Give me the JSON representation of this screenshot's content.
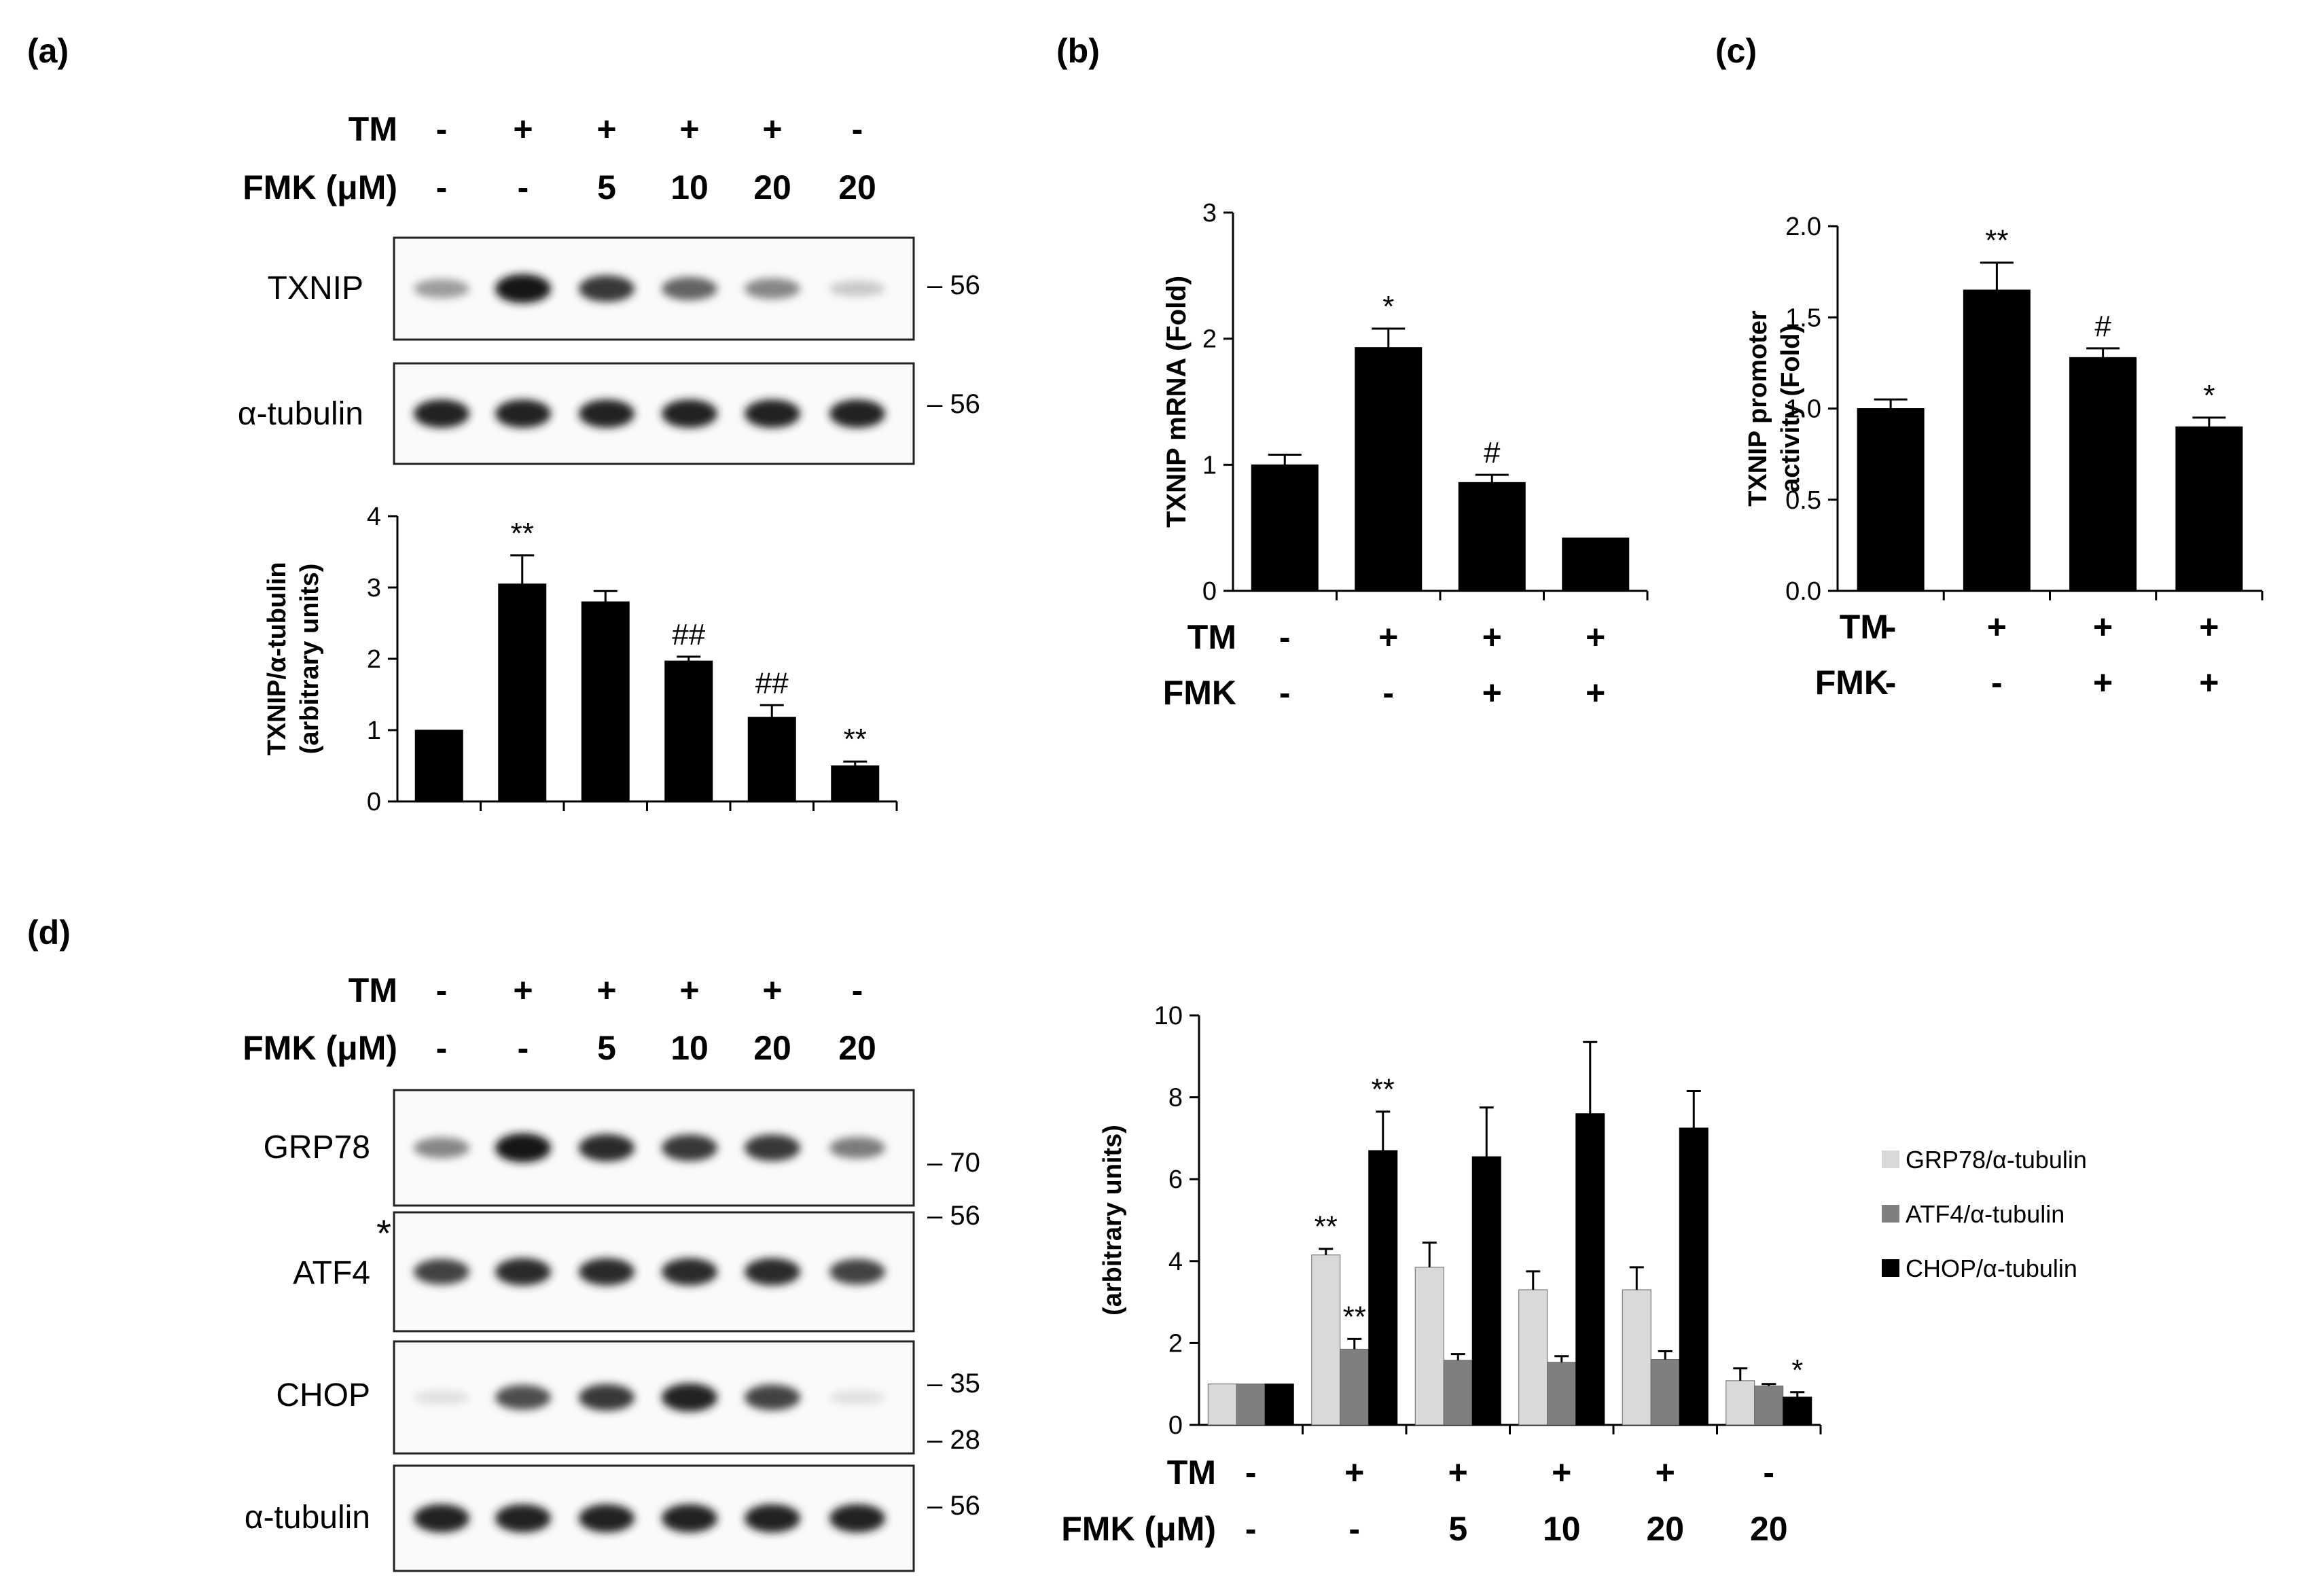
{
  "panels": {
    "a": {
      "label": "(a)",
      "conditions": {
        "rows": [
          {
            "name": "TM",
            "values": [
              "-",
              "+",
              "+",
              "+",
              "+",
              "-"
            ]
          },
          {
            "name": "FMK (μM)",
            "values": [
              "-",
              "-",
              "5",
              "10",
              "20",
              "20"
            ]
          }
        ]
      },
      "blots": [
        {
          "name": "TXNIP",
          "marker": "56",
          "intensity": [
            0.35,
            0.95,
            0.8,
            0.6,
            0.45,
            0.15
          ]
        },
        {
          "name": "α-tubulin",
          "marker": "56",
          "intensity": [
            0.9,
            0.9,
            0.9,
            0.9,
            0.9,
            0.9
          ]
        }
      ]
    },
    "b": {
      "label": "(b)",
      "conditions": {
        "rows": [
          {
            "name": "TM",
            "values": [
              "-",
              "+",
              "+",
              "+"
            ]
          },
          {
            "name": "FMK",
            "values": [
              "-",
              "-",
              "+",
              "+"
            ]
          }
        ]
      }
    },
    "c": {
      "label": "(c)",
      "conditions": {
        "rows": [
          {
            "name": "TM",
            "values": [
              "-",
              "+",
              "+",
              "+"
            ]
          },
          {
            "name": "FMK",
            "values": [
              "-",
              "-",
              "+",
              "+"
            ]
          }
        ]
      }
    },
    "d": {
      "label": "(d)",
      "conditions": {
        "rows": [
          {
            "name": "TM",
            "values": [
              "-",
              "+",
              "+",
              "+",
              "+",
              "-"
            ]
          },
          {
            "name": "FMK (μM)",
            "values": [
              "-",
              "-",
              "5",
              "10",
              "20",
              "20"
            ]
          }
        ]
      },
      "blots": [
        {
          "name": "GRP78",
          "marker": "70",
          "intensity": [
            0.45,
            0.95,
            0.85,
            0.8,
            0.8,
            0.5
          ]
        },
        {
          "name": "ATF4",
          "marker": "56",
          "star": "*",
          "intensity": [
            0.75,
            0.85,
            0.85,
            0.85,
            0.85,
            0.75
          ]
        },
        {
          "name": "CHOP",
          "markers": [
            "35",
            "28"
          ],
          "intensity": [
            0.05,
            0.7,
            0.8,
            0.9,
            0.75,
            0.05
          ]
        },
        {
          "name": "α-tubulin",
          "marker": "56",
          "intensity": [
            0.9,
            0.9,
            0.9,
            0.9,
            0.9,
            0.9
          ]
        }
      ],
      "chart_conditions": {
        "rows": [
          {
            "name": "TM",
            "values": [
              "-",
              "+",
              "+",
              "+",
              "+",
              "-"
            ]
          },
          {
            "name": "FMK (μM)",
            "values": [
              "-",
              "-",
              "5",
              "10",
              "20",
              "20"
            ]
          }
        ]
      }
    }
  },
  "chart_data": [
    {
      "id": "a",
      "type": "bar",
      "categories": [
        "1",
        "2",
        "3",
        "4",
        "5",
        "6"
      ],
      "values": [
        1.0,
        3.05,
        2.8,
        1.97,
        1.18,
        0.5
      ],
      "errors": [
        0,
        0.4,
        0.15,
        0.06,
        0.17,
        0.06
      ],
      "annotations": [
        "",
        "**",
        "",
        "##",
        "##",
        "**"
      ],
      "ylabel": [
        "TXNIP/α-tubulin",
        "(arbitrary units)"
      ],
      "ylim": [
        0,
        4
      ],
      "yticks": [
        0,
        1,
        2,
        3,
        4
      ]
    },
    {
      "id": "b",
      "type": "bar",
      "categories": [
        "1",
        "2",
        "3",
        "4"
      ],
      "values": [
        1.0,
        1.93,
        0.86,
        0.42
      ],
      "errors": [
        0.08,
        0.15,
        0.06,
        0
      ],
      "annotations": [
        "",
        "*",
        "#",
        ""
      ],
      "ylabel": [
        "TXNIP mRNA (Fold)"
      ],
      "ylim": [
        0,
        3
      ],
      "yticks": [
        0,
        1,
        2,
        3
      ]
    },
    {
      "id": "c",
      "type": "bar",
      "categories": [
        "1",
        "2",
        "3",
        "4"
      ],
      "values": [
        1.0,
        1.65,
        1.28,
        0.9
      ],
      "errors": [
        0.05,
        0.15,
        0.05,
        0.05
      ],
      "annotations": [
        "",
        "**",
        "#",
        "*"
      ],
      "ylabel": [
        "TXNIP promoter",
        "activity (Fold)"
      ],
      "ylim": [
        0,
        2.0
      ],
      "yticks": [
        "0.0",
        "0.5",
        "1.0",
        "1.5",
        "2.0"
      ]
    },
    {
      "id": "d",
      "type": "bar",
      "categories": [
        "1",
        "2",
        "3",
        "4",
        "5",
        "6"
      ],
      "series": [
        {
          "name": "GRP78/α-tubulin",
          "color": "#d9d9d9",
          "values": [
            1.0,
            4.15,
            3.85,
            3.3,
            3.3,
            1.08
          ],
          "errors": [
            0,
            0.15,
            0.6,
            0.45,
            0.55,
            0.3
          ],
          "annotations": [
            "",
            "**",
            "",
            "",
            "",
            ""
          ]
        },
        {
          "name": "ATF4/α-tubulin",
          "color": "#7f7f7f",
          "values": [
            1.0,
            1.85,
            1.58,
            1.53,
            1.6,
            0.95
          ],
          "errors": [
            0,
            0.25,
            0.15,
            0.15,
            0.2,
            0.05
          ],
          "annotations": [
            "",
            "**",
            "",
            "",
            "",
            ""
          ]
        },
        {
          "name": "CHOP/α-tubulin",
          "color": "#000000",
          "values": [
            1.0,
            6.7,
            6.55,
            7.6,
            7.25,
            0.68
          ],
          "errors": [
            0,
            0.95,
            1.2,
            1.75,
            0.9,
            0.12
          ],
          "annotations": [
            "",
            "**",
            "",
            "",
            "",
            "*"
          ]
        }
      ],
      "ylabel": [
        "(arbitrary units)"
      ],
      "ylim": [
        0,
        10
      ],
      "yticks": [
        0,
        2,
        4,
        6,
        8,
        10
      ],
      "legend": "right"
    }
  ]
}
